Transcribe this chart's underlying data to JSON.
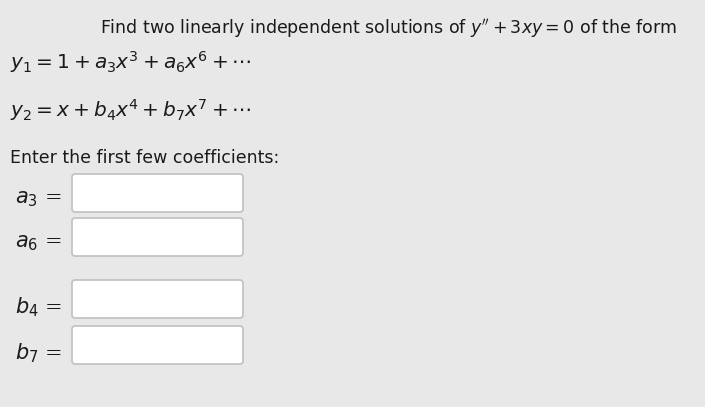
{
  "bg_color": "#e8e8e8",
  "panel_color": "#e8e8e8",
  "title_text": "Find two linearly independent solutions of $y'' + 3xy = 0$ of the form",
  "y1_text": "$y_1 = 1 + a_3x^3 + a_6x^6 + \\cdots$",
  "y2_text": "$y_2 = x + b_4x^4 + b_7x^7 + \\cdots$",
  "enter_text": "Enter the first few coefficients:",
  "labels": [
    "$a_3$",
    "$a_6$",
    "$b_4$",
    "$b_7$"
  ],
  "title_fontsize": 12.5,
  "eq_fontsize": 14.5,
  "label_fontsize": 15,
  "enter_fontsize": 12.5,
  "box_edge_color": "#c0c0c0",
  "text_color": "#1a1a1a",
  "label_color": "#cc0000"
}
